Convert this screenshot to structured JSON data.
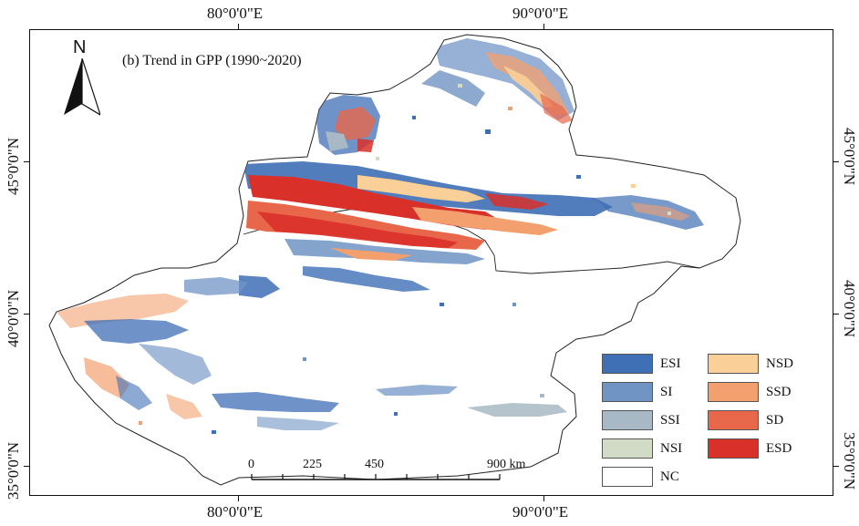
{
  "map": {
    "title": "(b) Trend in GPP (1990~2020)",
    "north_label": "N",
    "lon_labels": [
      "80°0'0\"E",
      "90°0'0\"E"
    ],
    "lat_labels": [
      "45°0'0\"N",
      "40°0'0\"N",
      "35°0'0\"N"
    ]
  },
  "legend": {
    "items": [
      {
        "label": "ESI",
        "color": "#3f6fb5"
      },
      {
        "label": "SI",
        "color": "#7094c4"
      },
      {
        "label": "SSI",
        "color": "#a8b8c4"
      },
      {
        "label": "NSI",
        "color": "#d2dbc6"
      },
      {
        "label": "NC",
        "color": "#ffffff"
      },
      {
        "label": "NSD",
        "color": "#fbcf98"
      },
      {
        "label": "SSD",
        "color": "#f4a06e"
      },
      {
        "label": "SD",
        "color": "#e8674a"
      },
      {
        "label": "ESD",
        "color": "#d9302a"
      }
    ]
  },
  "scalebar": {
    "labels": [
      "0",
      "225",
      "450",
      "900 km"
    ]
  }
}
